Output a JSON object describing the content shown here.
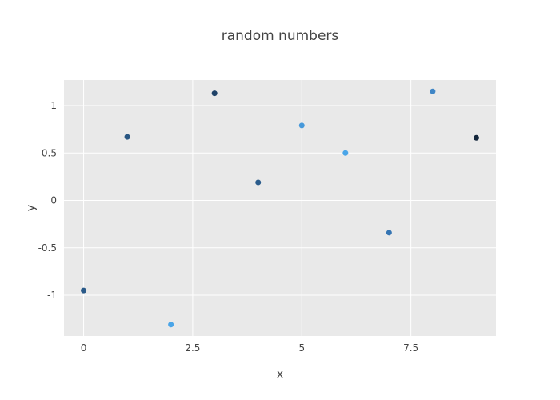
{
  "chart_data": {
    "type": "scatter",
    "title": "random numbers",
    "xlabel": "x",
    "ylabel": "y",
    "xlim": [
      -0.45,
      9.45
    ],
    "ylim": [
      -1.43,
      1.27
    ],
    "x_ticks": [
      {
        "value": 0,
        "label": "0"
      },
      {
        "value": 2.5,
        "label": "2.5"
      },
      {
        "value": 5,
        "label": "5"
      },
      {
        "value": 7.5,
        "label": "7.5"
      }
    ],
    "y_ticks": [
      {
        "value": -1,
        "label": "-1"
      },
      {
        "value": -0.5,
        "label": "-0.5"
      },
      {
        "value": 0,
        "label": "0"
      },
      {
        "value": 0.5,
        "label": "0.5"
      },
      {
        "value": 1,
        "label": "1"
      }
    ],
    "grid": true,
    "plot_background": "#e9e9e9",
    "grid_color": "#ffffff",
    "points": [
      {
        "x": 0,
        "y": -0.95,
        "color": "#2a5a89"
      },
      {
        "x": 1,
        "y": 0.67,
        "color": "#285682"
      },
      {
        "x": 2,
        "y": -1.31,
        "color": "#4aa5e8"
      },
      {
        "x": 3,
        "y": 1.13,
        "color": "#1f4268"
      },
      {
        "x": 4,
        "y": 0.19,
        "color": "#2b5c8c"
      },
      {
        "x": 5,
        "y": 0.79,
        "color": "#4799da"
      },
      {
        "x": 6,
        "y": 0.5,
        "color": "#4aa5e8"
      },
      {
        "x": 7,
        "y": -0.34,
        "color": "#3575b3"
      },
      {
        "x": 8,
        "y": 1.15,
        "color": "#3f86c6"
      },
      {
        "x": 9,
        "y": 0.66,
        "color": "#14273c"
      }
    ]
  }
}
